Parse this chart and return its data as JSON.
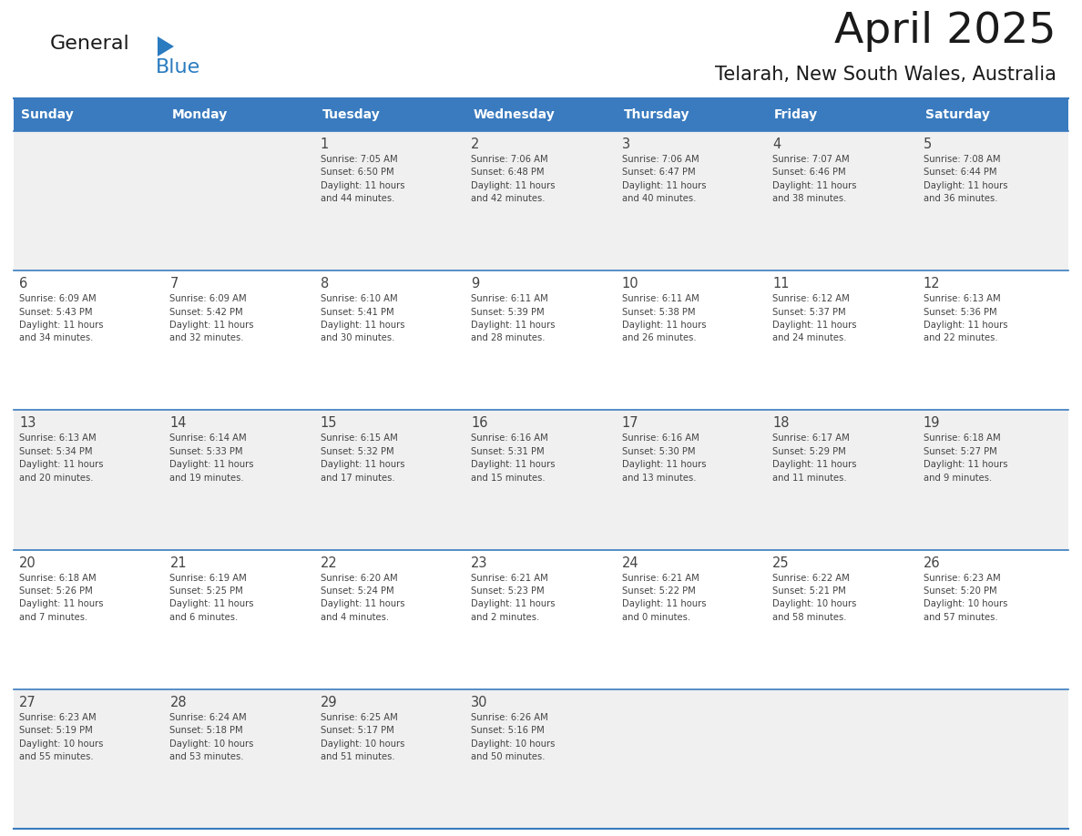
{
  "title": "April 2025",
  "subtitle": "Telarah, New South Wales, Australia",
  "header_bg_color": "#3a7bbf",
  "header_text_color": "#ffffff",
  "day_names": [
    "Sunday",
    "Monday",
    "Tuesday",
    "Wednesday",
    "Thursday",
    "Friday",
    "Saturday"
  ],
  "row_bg_colors": [
    "#f0f0f0",
    "#ffffff"
  ],
  "divider_color": "#3a7bbf",
  "text_color": "#444444",
  "title_color": "#1a1a1a",
  "subtitle_color": "#1a1a1a",
  "calendar_data": [
    [
      {
        "day": null,
        "info": null
      },
      {
        "day": null,
        "info": null
      },
      {
        "day": "1",
        "info": "Sunrise: 7:05 AM\nSunset: 6:50 PM\nDaylight: 11 hours\nand 44 minutes."
      },
      {
        "day": "2",
        "info": "Sunrise: 7:06 AM\nSunset: 6:48 PM\nDaylight: 11 hours\nand 42 minutes."
      },
      {
        "day": "3",
        "info": "Sunrise: 7:06 AM\nSunset: 6:47 PM\nDaylight: 11 hours\nand 40 minutes."
      },
      {
        "day": "4",
        "info": "Sunrise: 7:07 AM\nSunset: 6:46 PM\nDaylight: 11 hours\nand 38 minutes."
      },
      {
        "day": "5",
        "info": "Sunrise: 7:08 AM\nSunset: 6:44 PM\nDaylight: 11 hours\nand 36 minutes."
      }
    ],
    [
      {
        "day": "6",
        "info": "Sunrise: 6:09 AM\nSunset: 5:43 PM\nDaylight: 11 hours\nand 34 minutes."
      },
      {
        "day": "7",
        "info": "Sunrise: 6:09 AM\nSunset: 5:42 PM\nDaylight: 11 hours\nand 32 minutes."
      },
      {
        "day": "8",
        "info": "Sunrise: 6:10 AM\nSunset: 5:41 PM\nDaylight: 11 hours\nand 30 minutes."
      },
      {
        "day": "9",
        "info": "Sunrise: 6:11 AM\nSunset: 5:39 PM\nDaylight: 11 hours\nand 28 minutes."
      },
      {
        "day": "10",
        "info": "Sunrise: 6:11 AM\nSunset: 5:38 PM\nDaylight: 11 hours\nand 26 minutes."
      },
      {
        "day": "11",
        "info": "Sunrise: 6:12 AM\nSunset: 5:37 PM\nDaylight: 11 hours\nand 24 minutes."
      },
      {
        "day": "12",
        "info": "Sunrise: 6:13 AM\nSunset: 5:36 PM\nDaylight: 11 hours\nand 22 minutes."
      }
    ],
    [
      {
        "day": "13",
        "info": "Sunrise: 6:13 AM\nSunset: 5:34 PM\nDaylight: 11 hours\nand 20 minutes."
      },
      {
        "day": "14",
        "info": "Sunrise: 6:14 AM\nSunset: 5:33 PM\nDaylight: 11 hours\nand 19 minutes."
      },
      {
        "day": "15",
        "info": "Sunrise: 6:15 AM\nSunset: 5:32 PM\nDaylight: 11 hours\nand 17 minutes."
      },
      {
        "day": "16",
        "info": "Sunrise: 6:16 AM\nSunset: 5:31 PM\nDaylight: 11 hours\nand 15 minutes."
      },
      {
        "day": "17",
        "info": "Sunrise: 6:16 AM\nSunset: 5:30 PM\nDaylight: 11 hours\nand 13 minutes."
      },
      {
        "day": "18",
        "info": "Sunrise: 6:17 AM\nSunset: 5:29 PM\nDaylight: 11 hours\nand 11 minutes."
      },
      {
        "day": "19",
        "info": "Sunrise: 6:18 AM\nSunset: 5:27 PM\nDaylight: 11 hours\nand 9 minutes."
      }
    ],
    [
      {
        "day": "20",
        "info": "Sunrise: 6:18 AM\nSunset: 5:26 PM\nDaylight: 11 hours\nand 7 minutes."
      },
      {
        "day": "21",
        "info": "Sunrise: 6:19 AM\nSunset: 5:25 PM\nDaylight: 11 hours\nand 6 minutes."
      },
      {
        "day": "22",
        "info": "Sunrise: 6:20 AM\nSunset: 5:24 PM\nDaylight: 11 hours\nand 4 minutes."
      },
      {
        "day": "23",
        "info": "Sunrise: 6:21 AM\nSunset: 5:23 PM\nDaylight: 11 hours\nand 2 minutes."
      },
      {
        "day": "24",
        "info": "Sunrise: 6:21 AM\nSunset: 5:22 PM\nDaylight: 11 hours\nand 0 minutes."
      },
      {
        "day": "25",
        "info": "Sunrise: 6:22 AM\nSunset: 5:21 PM\nDaylight: 10 hours\nand 58 minutes."
      },
      {
        "day": "26",
        "info": "Sunrise: 6:23 AM\nSunset: 5:20 PM\nDaylight: 10 hours\nand 57 minutes."
      }
    ],
    [
      {
        "day": "27",
        "info": "Sunrise: 6:23 AM\nSunset: 5:19 PM\nDaylight: 10 hours\nand 55 minutes."
      },
      {
        "day": "28",
        "info": "Sunrise: 6:24 AM\nSunset: 5:18 PM\nDaylight: 10 hours\nand 53 minutes."
      },
      {
        "day": "29",
        "info": "Sunrise: 6:25 AM\nSunset: 5:17 PM\nDaylight: 10 hours\nand 51 minutes."
      },
      {
        "day": "30",
        "info": "Sunrise: 6:26 AM\nSunset: 5:16 PM\nDaylight: 10 hours\nand 50 minutes."
      },
      {
        "day": null,
        "info": null
      },
      {
        "day": null,
        "info": null
      },
      {
        "day": null,
        "info": null
      }
    ]
  ],
  "logo_color_general": "#1a1a1a",
  "logo_color_blue": "#2a7bbf",
  "logo_triangle_color": "#2a7bbf",
  "fig_width": 11.88,
  "fig_height": 9.18,
  "dpi": 100
}
